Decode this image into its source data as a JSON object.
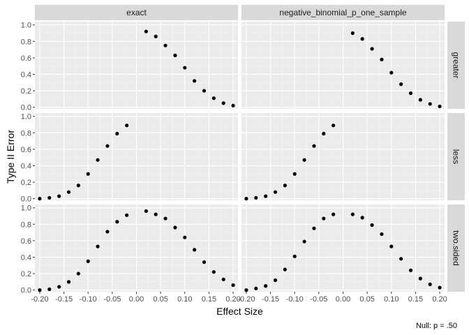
{
  "chart_data": {
    "type": "scatter",
    "xlabel": "Effect Size",
    "ylabel": "Type II Error",
    "caption": "Null: p = .50",
    "xlim": [
      -0.21,
      0.21
    ],
    "ylim": [
      -0.02,
      1.04
    ],
    "x_ticks": [
      -0.2,
      -0.15,
      -0.1,
      -0.05,
      0,
      0.05,
      0.1,
      0.15,
      0.2
    ],
    "x_tick_labels": [
      "-0.20",
      "-0.15",
      "-0.10",
      "-0.05",
      "0.00",
      "0.05",
      "0.10",
      "0.15",
      "0.20"
    ],
    "y_ticks": [
      0,
      0.2,
      0.4,
      0.6,
      0.8,
      1.0
    ],
    "y_tick_labels": [
      "0.0",
      "0.2",
      "0.4",
      "0.6",
      "0.8",
      "1.0"
    ],
    "grid": true,
    "columns": [
      "exact",
      "negative_binomial_p_one_sample"
    ],
    "rows": [
      "greater",
      "less",
      "two.sided"
    ],
    "panels": [
      {
        "row": "greater",
        "col": "exact",
        "x": [
          0.02,
          0.04,
          0.06,
          0.08,
          0.1,
          0.12,
          0.14,
          0.16,
          0.18,
          0.2
        ],
        "y": [
          0.92,
          0.86,
          0.75,
          0.63,
          0.48,
          0.32,
          0.2,
          0.11,
          0.05,
          0.02
        ]
      },
      {
        "row": "greater",
        "col": "negative_binomial_p_one_sample",
        "x": [
          0.02,
          0.04,
          0.06,
          0.08,
          0.1,
          0.12,
          0.14,
          0.16,
          0.18,
          0.2
        ],
        "y": [
          0.9,
          0.83,
          0.71,
          0.58,
          0.42,
          0.28,
          0.17,
          0.09,
          0.04,
          0.01
        ]
      },
      {
        "row": "less",
        "col": "exact",
        "x": [
          -0.2,
          -0.18,
          -0.16,
          -0.14,
          -0.12,
          -0.1,
          -0.08,
          -0.06,
          -0.04,
          -0.02
        ],
        "y": [
          0.0,
          0.01,
          0.03,
          0.08,
          0.16,
          0.3,
          0.47,
          0.64,
          0.79,
          0.89
        ]
      },
      {
        "row": "less",
        "col": "negative_binomial_p_one_sample",
        "x": [
          -0.2,
          -0.18,
          -0.16,
          -0.14,
          -0.12,
          -0.1,
          -0.08,
          -0.06,
          -0.04,
          -0.02
        ],
        "y": [
          0.0,
          0.01,
          0.03,
          0.08,
          0.16,
          0.3,
          0.47,
          0.64,
          0.79,
          0.89
        ]
      },
      {
        "row": "two.sided",
        "col": "exact",
        "x": [
          -0.2,
          -0.18,
          -0.16,
          -0.14,
          -0.12,
          -0.1,
          -0.08,
          -0.06,
          -0.04,
          -0.02,
          0.02,
          0.04,
          0.06,
          0.08,
          0.1,
          0.12,
          0.14,
          0.16,
          0.18,
          0.2
        ],
        "y": [
          0.0,
          0.01,
          0.04,
          0.1,
          0.2,
          0.35,
          0.53,
          0.71,
          0.83,
          0.91,
          0.96,
          0.92,
          0.87,
          0.76,
          0.64,
          0.49,
          0.34,
          0.22,
          0.13,
          0.06
        ]
      },
      {
        "row": "two.sided",
        "col": "negative_binomial_p_one_sample",
        "x": [
          -0.2,
          -0.18,
          -0.16,
          -0.14,
          -0.12,
          -0.1,
          -0.08,
          -0.06,
          -0.04,
          -0.02,
          0.02,
          0.04,
          0.06,
          0.08,
          0.1,
          0.12,
          0.14,
          0.16,
          0.18,
          0.2
        ],
        "y": [
          0.0,
          0.02,
          0.05,
          0.12,
          0.25,
          0.41,
          0.59,
          0.75,
          0.87,
          0.92,
          0.92,
          0.88,
          0.79,
          0.68,
          0.53,
          0.38,
          0.24,
          0.14,
          0.07,
          0.03
        ]
      }
    ]
  }
}
